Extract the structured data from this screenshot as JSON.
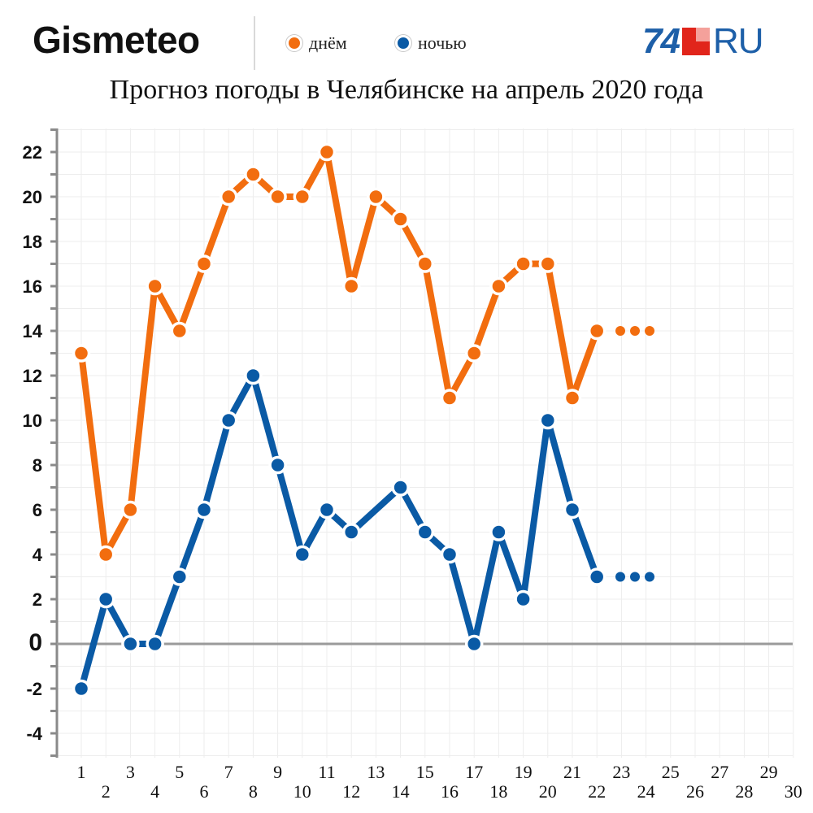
{
  "header": {
    "brand": "Gismeteo",
    "logo_number": "74",
    "logo_suffix": "RU"
  },
  "title": "Прогноз погоды в Челябинске на апрель 2020 года",
  "chart_data": {
    "type": "line",
    "title": "Прогноз погоды в Челябинске на апрель 2020 года",
    "xlabel": "",
    "ylabel": "",
    "x": [
      1,
      2,
      3,
      4,
      5,
      6,
      7,
      8,
      9,
      10,
      11,
      12,
      13,
      14,
      15,
      16,
      17,
      18,
      19,
      20,
      21,
      22
    ],
    "x_ticks": [
      1,
      2,
      3,
      4,
      5,
      6,
      7,
      8,
      9,
      10,
      11,
      12,
      13,
      14,
      15,
      16,
      17,
      18,
      19,
      20,
      21,
      22,
      23,
      24,
      25,
      26,
      27,
      28,
      29,
      30
    ],
    "xlim": [
      1,
      30
    ],
    "y_ticks": [
      22,
      20,
      18,
      16,
      14,
      12,
      10,
      8,
      6,
      4,
      2,
      0,
      -2,
      -4
    ],
    "ylim": [
      -5,
      23
    ],
    "grid": true,
    "legend_position": "top",
    "series": [
      {
        "name": "днём",
        "color": "#f26d0f",
        "values": [
          13,
          4,
          6,
          16,
          14,
          17,
          20,
          21,
          20,
          20,
          22,
          16,
          20,
          19,
          17,
          11,
          13,
          16,
          17,
          17,
          11,
          14
        ],
        "trailing_dots": [
          14,
          14,
          14
        ]
      },
      {
        "name": "ночью",
        "color": "#0a5aa5",
        "values": [
          -2,
          2,
          0,
          0,
          3,
          6,
          10,
          12,
          8,
          4,
          6,
          5,
          null,
          7,
          5,
          4,
          0,
          5,
          2,
          10,
          6,
          3
        ],
        "trailing_dots": [
          3,
          3,
          3
        ]
      }
    ]
  }
}
